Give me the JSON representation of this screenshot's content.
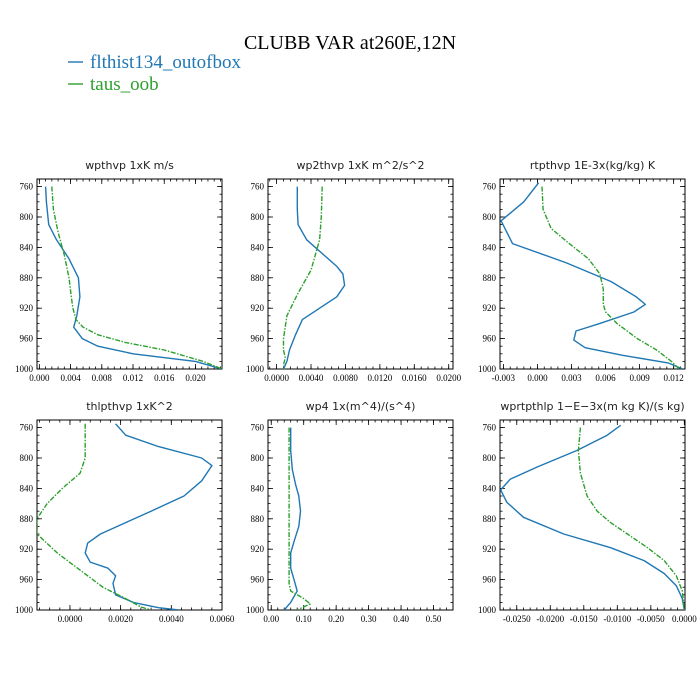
{
  "title": "CLUBB VAR at260E,12N",
  "colors": {
    "series_a": "#1f77b4",
    "series_b": "#2ca02c"
  },
  "chart_data": [
    {
      "type": "line",
      "title": "wpthvp   1xK m/s",
      "y_ticks": [
        760,
        800,
        840,
        880,
        920,
        960,
        1000
      ],
      "ylim": [
        1000,
        750
      ],
      "xlim": [
        -0.0003,
        0.0234
      ],
      "x_ticks": [
        0.0,
        0.004,
        0.008,
        0.012,
        0.016,
        0.02
      ],
      "x_tick_labels": [
        "0.000",
        "0.004",
        "0.008",
        "0.012",
        "0.016",
        "0.020"
      ],
      "series": [
        {
          "name": "flthist134_outofbox",
          "x": [
            0.0008,
            0.0009,
            0.0012,
            0.0022,
            0.0038,
            0.005,
            0.0052,
            0.0048,
            0.0044,
            0.0055,
            0.0075,
            0.012,
            0.02,
            0.0234
          ],
          "y": [
            760,
            780,
            810,
            830,
            855,
            880,
            905,
            930,
            945,
            960,
            970,
            980,
            990,
            1000
          ]
        },
        {
          "name": "taus_oob",
          "x": [
            0.0016,
            0.0018,
            0.0024,
            0.0032,
            0.0038,
            0.0041,
            0.0043,
            0.0047,
            0.0056,
            0.0075,
            0.011,
            0.016,
            0.021,
            0.0234
          ],
          "y": [
            760,
            790,
            820,
            850,
            880,
            905,
            920,
            935,
            945,
            955,
            965,
            975,
            990,
            1000
          ]
        }
      ]
    },
    {
      "type": "line",
      "title": "wp2thvp   1xK m^2/s^2",
      "y_ticks": [
        760,
        800,
        840,
        880,
        920,
        960,
        1000
      ],
      "ylim": [
        1000,
        750
      ],
      "xlim": [
        -0.001,
        0.0205
      ],
      "x_ticks": [
        0.0,
        0.004,
        0.008,
        0.012,
        0.016,
        0.02
      ],
      "x_tick_labels": [
        "0.0000",
        "0.0040",
        "0.0080",
        "0.0120",
        "0.0160",
        "0.0200"
      ],
      "series": [
        {
          "name": "flthist134_outofbox",
          "x": [
            0.0024,
            0.0024,
            0.0025,
            0.0035,
            0.0055,
            0.007,
            0.0077,
            0.0079,
            0.007,
            0.005,
            0.003,
            0.0022,
            0.0015,
            0.0012,
            0.0008
          ],
          "y": [
            760,
            790,
            810,
            830,
            850,
            865,
            875,
            890,
            905,
            920,
            935,
            955,
            975,
            990,
            1000
          ]
        },
        {
          "name": "taus_oob",
          "x": [
            0.0053,
            0.0052,
            0.005,
            0.0045,
            0.004,
            0.0025,
            0.0012,
            0.0008,
            0.0008,
            0.001,
            0.0008,
            0.0009
          ],
          "y": [
            760,
            800,
            830,
            850,
            870,
            900,
            930,
            960,
            975,
            985,
            995,
            1000
          ]
        }
      ]
    },
    {
      "type": "line",
      "title": "rtpthvp   1E-3x(kg/kg) K",
      "y_ticks": [
        760,
        800,
        840,
        880,
        920,
        960,
        1000
      ],
      "ylim": [
        1000,
        750
      ],
      "xlim": [
        -0.0033,
        0.013
      ],
      "x_ticks": [
        -0.003,
        0.0,
        0.003,
        0.006,
        0.009,
        0.012
      ],
      "x_tick_labels": [
        "-0.003",
        "0.000",
        "0.003",
        "0.006",
        "0.009",
        "0.012"
      ],
      "series": [
        {
          "name": "flthist134_outofbox",
          "x": [
            0.0001,
            -0.0012,
            -0.0032,
            -0.0022,
            0.0025,
            0.0065,
            0.0087,
            0.0095,
            0.0085,
            0.0055,
            0.0034,
            0.0032,
            0.0042,
            0.0075,
            0.0115,
            0.0128
          ],
          "y": [
            755,
            780,
            805,
            835,
            860,
            885,
            905,
            915,
            925,
            940,
            950,
            962,
            972,
            982,
            992,
            1000
          ]
        },
        {
          "name": "taus_oob",
          "x": [
            0.0004,
            0.0005,
            0.0012,
            0.0028,
            0.0045,
            0.0055,
            0.0058,
            0.0058,
            0.006,
            0.007,
            0.0088,
            0.0105,
            0.0118,
            0.0125
          ],
          "y": [
            760,
            790,
            815,
            835,
            855,
            875,
            895,
            915,
            925,
            940,
            960,
            975,
            990,
            1000
          ]
        }
      ]
    },
    {
      "type": "line",
      "title": "thlpthvp   1xK^2",
      "y_ticks": [
        760,
        800,
        840,
        880,
        920,
        960,
        1000
      ],
      "ylim": [
        1000,
        750
      ],
      "xlim": [
        -0.0013,
        0.006
      ],
      "x_ticks": [
        0.0,
        0.002,
        0.004,
        0.006
      ],
      "x_tick_labels": [
        "0.0000",
        "0.0020",
        "0.0040",
        "0.0060"
      ],
      "series": [
        {
          "name": "flthist134_outofbox",
          "x": [
            0.0018,
            0.0022,
            0.0035,
            0.0052,
            0.0056,
            0.0052,
            0.0045,
            0.0032,
            0.0022,
            0.0012,
            0.0007,
            0.0006,
            0.0008,
            0.0015,
            0.0018,
            0.0017,
            0.0018,
            0.0025,
            0.0035,
            0.0043
          ],
          "y": [
            755,
            770,
            785,
            800,
            810,
            830,
            850,
            870,
            885,
            900,
            912,
            925,
            937,
            945,
            955,
            965,
            980,
            990,
            997,
            1000
          ]
        },
        {
          "name": "taus_oob",
          "x": [
            0.0006,
            0.0006,
            0.0006,
            0.0004,
            -0.0003,
            -0.0009,
            -0.0013,
            -0.0013,
            -0.0005,
            0.0005,
            0.0013,
            0.0022,
            0.0028,
            0.0032
          ],
          "y": [
            755,
            775,
            800,
            820,
            840,
            860,
            880,
            900,
            925,
            950,
            970,
            985,
            996,
            1000
          ]
        }
      ]
    },
    {
      "type": "line",
      "title": "wp4   1x(m^4)/(s^4)",
      "y_ticks": [
        760,
        800,
        840,
        880,
        920,
        960,
        1000
      ],
      "ylim": [
        1000,
        750
      ],
      "xlim": [
        -0.01,
        0.56
      ],
      "x_ticks": [
        0.0,
        0.1,
        0.2,
        0.3,
        0.4,
        0.5
      ],
      "x_tick_labels": [
        "0.00",
        "0.10",
        "0.20",
        "0.30",
        "0.40",
        "0.50"
      ],
      "series": [
        {
          "name": "flthist134_outofbox",
          "x": [
            0.06,
            0.06,
            0.065,
            0.075,
            0.085,
            0.09,
            0.085,
            0.07,
            0.06,
            0.06,
            0.07,
            0.08,
            0.06,
            0.04
          ],
          "y": [
            760,
            790,
            815,
            835,
            850,
            870,
            890,
            910,
            925,
            945,
            960,
            975,
            990,
            1000
          ]
        },
        {
          "name": "taus_oob",
          "x": [
            0.055,
            0.055,
            0.055,
            0.055,
            0.055,
            0.055,
            0.055,
            0.055,
            0.06,
            0.1,
            0.12,
            0.095,
            0.08
          ],
          "y": [
            760,
            800,
            840,
            870,
            900,
            930,
            950,
            965,
            975,
            985,
            992,
            997,
            1000
          ]
        }
      ]
    },
    {
      "type": "line",
      "title": "wprtpthlp   1−E−3x(m kg K)/(s kg)",
      "y_ticks": [
        760,
        800,
        840,
        880,
        920,
        960,
        1000
      ],
      "ylim": [
        1000,
        750
      ],
      "xlim": [
        -0.0275,
        0.0001
      ],
      "x_ticks": [
        -0.025,
        -0.02,
        -0.015,
        -0.01,
        -0.005,
        0.0
      ],
      "x_tick_labels": [
        "-0.0250",
        "-0.0200",
        "-0.0150",
        "-0.0100",
        "-0.0050",
        "0.0000"
      ],
      "series": [
        {
          "name": "flthist134_outofbox",
          "x": [
            -0.0095,
            -0.0115,
            -0.016,
            -0.022,
            -0.026,
            -0.0274,
            -0.0265,
            -0.024,
            -0.018,
            -0.011,
            -0.006,
            -0.003,
            -0.0012,
            -0.0003,
            0.0
          ],
          "y": [
            757,
            770,
            790,
            812,
            828,
            842,
            858,
            878,
            900,
            918,
            935,
            952,
            968,
            985,
            1000
          ]
        },
        {
          "name": "taus_oob",
          "x": [
            -0.0155,
            -0.0158,
            -0.0155,
            -0.0145,
            -0.013,
            -0.011,
            -0.0085,
            -0.0055,
            -0.003,
            -0.0012,
            -0.0003,
            0.0
          ],
          "y": [
            760,
            790,
            820,
            850,
            870,
            885,
            900,
            918,
            935,
            955,
            975,
            1000
          ]
        }
      ]
    }
  ]
}
